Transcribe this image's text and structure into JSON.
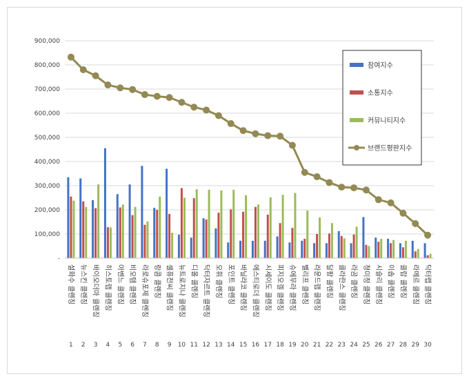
{
  "chart_data": {
    "type": "bar",
    "categories": [
      "설화수 클렌징",
      "뉴스킨 클렌징",
      "바이오더마 클렌징",
      "히스토랩 클렌징",
      "아벤느 클렌징",
      "비오템 클렌징",
      "라로슈포제 클렌징",
      "랑콤 클렌징",
      "셀퓨전씨 클렌징",
      "뉴트로지나 클렌징",
      "디올 클렌징",
      "닥터자르트 클렌징",
      "오휘 클렌징",
      "포인트 클렌징",
      "바닐라코 클렌징",
      "에스티로더 클렌징",
      "시세이도 클렌징",
      "피지오겔 클렌징",
      "슈에무라 클렌징",
      "벨리프 클렌징",
      "라운드랩 클렌징",
      "달팡 클렌징",
      "클라란스 클렌징",
      "라곰 클렌징",
      "청미정 클렌징",
      "시슬리 클렌징",
      "이솝 클렌징",
      "클랍 클렌징",
      "라메르 클렌징",
      "닥터랩 클렌징"
    ],
    "ranks": [
      "1",
      "2",
      "3",
      "4",
      "5",
      "6",
      "7",
      "8",
      "9",
      "10",
      "11",
      "12",
      "13",
      "14",
      "15",
      "16",
      "17",
      "18",
      "19",
      "20",
      "21",
      "22",
      "23",
      "24",
      "25",
      "26",
      "27",
      "28",
      "29",
      "30"
    ],
    "series": [
      {
        "name": "참여지수",
        "color": "#4472c4",
        "values": [
          335000,
          330000,
          240000,
          455000,
          265000,
          305000,
          382000,
          208000,
          370000,
          97000,
          85000,
          165000,
          123000,
          65000,
          72000,
          72000,
          72000,
          90000,
          65000,
          72000,
          62000,
          62000,
          112000,
          62000,
          170000,
          85000,
          80000,
          62000,
          72000,
          62000
        ]
      },
      {
        "name": "소통지수",
        "color": "#c0504d",
        "values": [
          255000,
          235000,
          207000,
          128000,
          210000,
          178000,
          138000,
          200000,
          183000,
          290000,
          248000,
          160000,
          188000,
          202000,
          192000,
          212000,
          180000,
          145000,
          125000,
          80000,
          100000,
          102000,
          92000,
          98000,
          55000,
          68000,
          62000,
          45000,
          28000,
          12000
        ]
      },
      {
        "name": "커뮤니티지수",
        "color": "#9bbb59",
        "values": [
          238000,
          212000,
          305000,
          127000,
          222000,
          212000,
          152000,
          255000,
          105000,
          250000,
          285000,
          283000,
          280000,
          283000,
          260000,
          222000,
          252000,
          262000,
          270000,
          197000,
          168000,
          145000,
          82000,
          130000,
          50000,
          80000,
          75000,
          72000,
          38000,
          18000
        ]
      }
    ],
    "line": {
      "name": "브랜드평판지수",
      "color": "#938953",
      "values": [
        832000,
        780000,
        755000,
        717000,
        705000,
        698000,
        677000,
        670000,
        665000,
        645000,
        625000,
        613000,
        590000,
        557000,
        528000,
        515000,
        507000,
        505000,
        467000,
        355000,
        337000,
        313000,
        294000,
        291000,
        282000,
        242000,
        229000,
        186000,
        143000,
        95000
      ]
    },
    "yticks": [
      "-",
      "100,000",
      "200,000",
      "300,000",
      "400,000",
      "500,000",
      "600,000",
      "700,000",
      "800,000",
      "900,000"
    ],
    "ylim": [
      0,
      900000
    ],
    "legend_position": "right"
  }
}
